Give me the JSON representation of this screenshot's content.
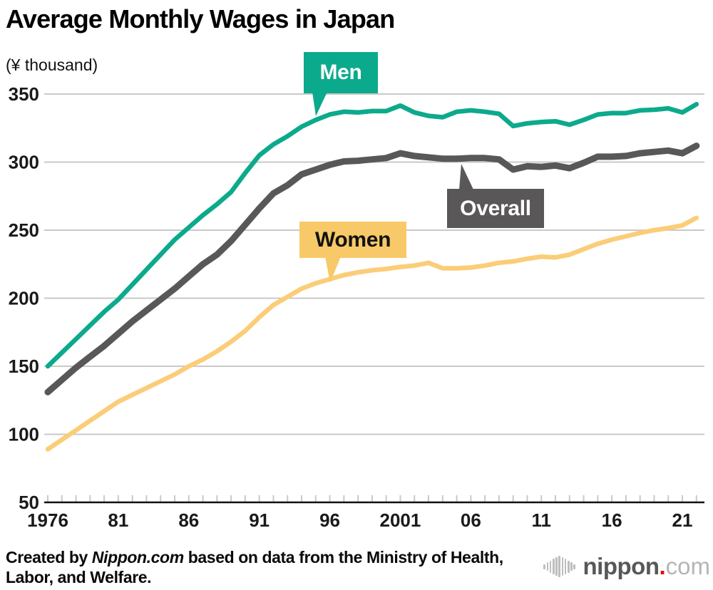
{
  "title": "Average Monthly Wages in Japan",
  "unit_label": "(¥ thousand)",
  "chart_data": {
    "type": "line",
    "title": "Average Monthly Wages in Japan",
    "ylabel": "(¥ thousand)",
    "xlim": [
      1976,
      2022
    ],
    "ylim": [
      50,
      350
    ],
    "grid": true,
    "legend_position": "callout boxes on lines",
    "yticks": [
      350,
      300,
      250,
      200,
      150,
      100,
      50
    ],
    "xticks": [
      {
        "year": 1976,
        "label": "1976"
      },
      {
        "year": 1981,
        "label": "81"
      },
      {
        "year": 1986,
        "label": "86"
      },
      {
        "year": 1991,
        "label": "91"
      },
      {
        "year": 1996,
        "label": "96"
      },
      {
        "year": 2001,
        "label": "2001"
      },
      {
        "year": 2006,
        "label": "06"
      },
      {
        "year": 2011,
        "label": "11"
      },
      {
        "year": 2016,
        "label": "16"
      },
      {
        "year": 2021,
        "label": "21"
      }
    ],
    "x": [
      1976,
      1977,
      1978,
      1979,
      1980,
      1981,
      1982,
      1983,
      1984,
      1985,
      1986,
      1987,
      1988,
      1989,
      1990,
      1991,
      1992,
      1993,
      1994,
      1995,
      1996,
      1997,
      1998,
      1999,
      2000,
      2001,
      2002,
      2003,
      2004,
      2005,
      2006,
      2007,
      2008,
      2009,
      2010,
      2011,
      2012,
      2013,
      2014,
      2015,
      2016,
      2017,
      2018,
      2019,
      2020,
      2021,
      2022
    ],
    "series": [
      {
        "name": "Men",
        "color": "#0caa8c",
        "values": [
          150,
          160,
          170,
          180,
          190,
          199,
          210,
          221,
          232,
          243,
          252,
          261,
          269,
          278,
          292,
          305,
          313,
          319,
          326,
          331,
          335,
          337,
          336.5,
          337.5,
          337.5,
          341.5,
          336.5,
          334,
          333,
          337,
          338,
          337,
          335.5,
          326.5,
          328.5,
          329.5,
          330,
          327.5,
          331,
          335,
          336,
          336,
          338,
          338.5,
          339.5,
          336.5,
          342.5
        ]
      },
      {
        "name": "Overall",
        "color": "#595757",
        "values": [
          131,
          140,
          149,
          157,
          165,
          174,
          183,
          191,
          199,
          207,
          216,
          225,
          232,
          242,
          254,
          266,
          277,
          283,
          291,
          294.5,
          298,
          300.5,
          301,
          302,
          303,
          306.5,
          304.5,
          303.5,
          302.5,
          302.5,
          303,
          303,
          302,
          294.5,
          297,
          296.5,
          297.5,
          295.5,
          299.5,
          304,
          304,
          304.5,
          306.5,
          307.5,
          308.5,
          306.5,
          312
        ]
      },
      {
        "name": "Women",
        "color": "#fbcd78",
        "values": [
          89,
          96,
          103,
          110,
          117,
          124,
          129,
          134,
          139,
          144,
          150,
          155,
          161,
          168,
          176,
          186,
          195,
          201,
          207,
          211,
          214,
          217,
          219,
          220.5,
          221.5,
          223,
          224,
          226,
          222,
          222,
          222.5,
          224,
          226,
          227,
          229,
          230.5,
          230,
          232,
          236,
          240,
          243,
          245.5,
          248,
          250,
          251.5,
          253.5,
          259
        ]
      }
    ]
  },
  "colors": {
    "men": "#0caa8c",
    "overall": "#595757",
    "women_line": "#fbcd78",
    "women_box": "#f8c968",
    "gridline": "#c9c9c9",
    "axis": "#111111",
    "logo_red": "#e60012"
  },
  "footer": {
    "credit_prefix": "Created by ",
    "credit_italic": "Nippon.com",
    "credit_suffix": " based on data from the Ministry of Health,",
    "credit_line2": "Labor, and Welfare.",
    "logo_text_main": "nippon",
    "logo_text_dot": ".",
    "logo_text_tld": "com"
  }
}
